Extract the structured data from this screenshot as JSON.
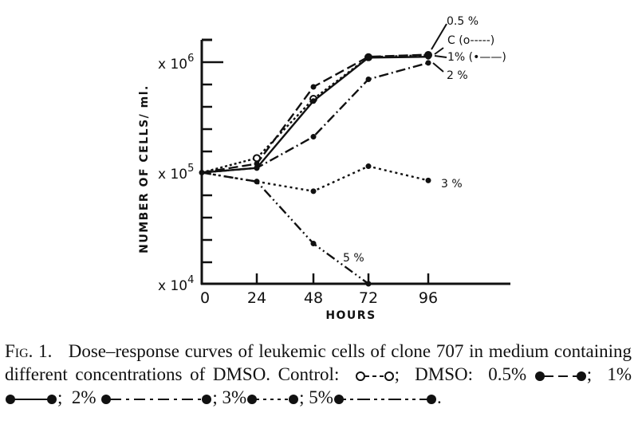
{
  "chart_data": {
    "type": "line",
    "title": "",
    "xlabel": "HOURS",
    "ylabel": "NUMBER OF CELLS/ ml.",
    "yscale": "log",
    "ylim": [
      10000,
      1500000
    ],
    "xlim": [
      0,
      120
    ],
    "grid": false,
    "x": [
      0,
      24,
      48,
      72,
      96
    ],
    "xticks": [
      "0",
      "24",
      "48",
      "72",
      "96"
    ],
    "yticks": [
      {
        "label_base": "x 10",
        "exp": "6",
        "value": 1000000
      },
      {
        "label_base": "x 10",
        "exp": "5",
        "value": 100000
      },
      {
        "label_base": "x 10",
        "exp": "4",
        "value": 10000
      }
    ],
    "series": [
      {
        "name": "C",
        "legend": "C (o-----)",
        "marker": "open-circle",
        "dash": "3,3",
        "values": [
          100000,
          135000,
          460000,
          1090000,
          1140000
        ]
      },
      {
        "name": "0.5%",
        "legend": "0.5 %",
        "marker": "filled-circle",
        "dash": "12,5",
        "values": [
          100000,
          120000,
          590000,
          1100000,
          1150000
        ]
      },
      {
        "name": "1%",
        "legend": "1% (•——)",
        "marker": "filled-circle",
        "dash": "",
        "values": [
          100000,
          110000,
          440000,
          1080000,
          1100000
        ]
      },
      {
        "name": "2%",
        "legend": "2 %",
        "marker": "filled-circle",
        "dash": "12,4,2,4",
        "values": [
          100000,
          110000,
          210000,
          690000,
          970000
        ]
      },
      {
        "name": "3%",
        "legend": "3 %",
        "marker": "filled-circle",
        "dash": "3,4",
        "values": [
          100000,
          83000,
          68000,
          114000,
          85000
        ]
      },
      {
        "name": "5%",
        "legend": "5 %",
        "marker": "filled-circle",
        "dash": "12,4,2,4,2,4",
        "values": [
          100000,
          83000,
          23000,
          10000,
          null
        ]
      }
    ],
    "annotations": [
      "0.5 %",
      "C (o-----)",
      "1% (•——)",
      "2 %",
      "3 %",
      "5 %"
    ]
  },
  "caption": {
    "fig_label": "Fig. 1.",
    "text_line1": "Dose–response curves of leukemic cells of clone 707 in medium containing different concentrations of DMSO. Control:",
    "control_sep": ";",
    "dmso_label": "DMSO:",
    "items": [
      {
        "label": "0.5%",
        "sep": ";"
      },
      {
        "label": "1%",
        "sep": ";"
      },
      {
        "label": "2%",
        "sep": ";"
      },
      {
        "label": "3%",
        "sep": ";"
      },
      {
        "label": "5%",
        "sep": "."
      }
    ]
  }
}
